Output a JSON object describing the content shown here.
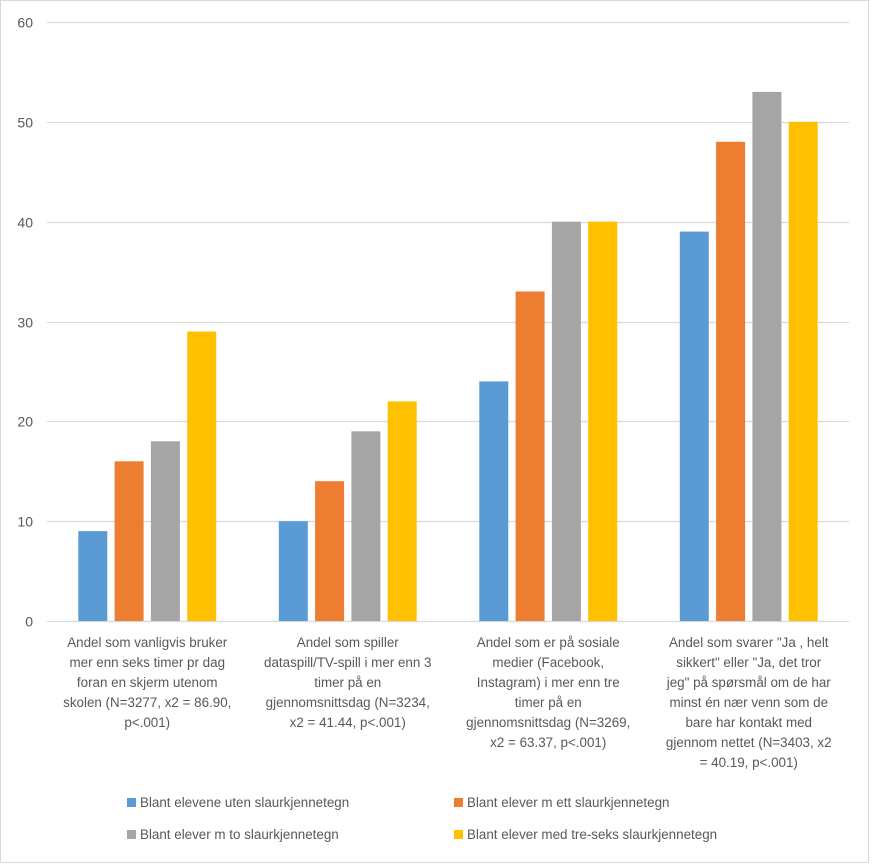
{
  "chart_data": {
    "type": "bar",
    "title": "",
    "xlabel": "",
    "ylabel": "",
    "ylim": [
      0,
      60
    ],
    "yticks": [
      0,
      10,
      20,
      30,
      40,
      50,
      60
    ],
    "grid": true,
    "legend_position": "bottom",
    "categories": [
      "Andel som vanligvis bruker mer enn seks timer pr dag foran en skjerm utenom skolen (N=3277, x2 = 86.90, p<.001)",
      "Andel som spiller dataspill/TV-spill i mer enn 3 timer på en gjennomsnittsdag (N=3234, x2 = 41.44, p<.001)",
      "Andel som er på sosiale medier (Facebook, Instagram) i mer enn tre timer på en gjennomsnittsdag (N=3269, x2 = 63.37, p<.001)",
      "Andel som svarer \"Ja , helt sikkert\" eller \"Ja, det tror jeg\" på spørsmål om de har minst én nær venn som de bare har kontakt med gjennom nettet (N=3403, x2 = 40.19, p<.001)"
    ],
    "category_lines": [
      [
        "Andel som vanligvis bruker",
        "mer enn seks timer pr dag",
        "foran en skjerm utenom",
        "skolen (N=3277, x2 = 86.90,",
        "p<.001)"
      ],
      [
        "Andel som spiller",
        "dataspill/TV-spill i mer enn 3",
        "timer på en",
        "gjennomsnittsdag (N=3234,",
        "x2 = 41.44, p<.001)"
      ],
      [
        "Andel som er på sosiale",
        "medier (Facebook,",
        "Instagram) i mer enn tre",
        "timer på en",
        "gjennomsnittsdag (N=3269,",
        "x2 = 63.37, p<.001)"
      ],
      [
        "Andel som svarer \"Ja , helt",
        "sikkert\" eller \"Ja, det tror",
        "jeg\" på spørsmål om de har",
        "minst én nær venn som de",
        "bare har kontakt med",
        "gjennom nettet (N=3403, x2",
        "= 40.19, p<.001)"
      ]
    ],
    "series": [
      {
        "name": "Blant elevene uten slaurkjennetegn",
        "color": "#5b9bd5",
        "values": [
          9,
          10,
          24,
          39
        ]
      },
      {
        "name": "Blant elever m ett slaurkjennetegn",
        "color": "#ed7d31",
        "values": [
          16,
          14,
          33,
          48
        ]
      },
      {
        "name": "Blant elever m to slaurkjennetegn",
        "color": "#a5a5a5",
        "values": [
          18,
          19,
          40,
          53
        ]
      },
      {
        "name": "Blant elever med tre-seks slaurkjennetegn",
        "color": "#ffc000",
        "values": [
          29,
          22,
          40,
          50
        ]
      }
    ]
  }
}
